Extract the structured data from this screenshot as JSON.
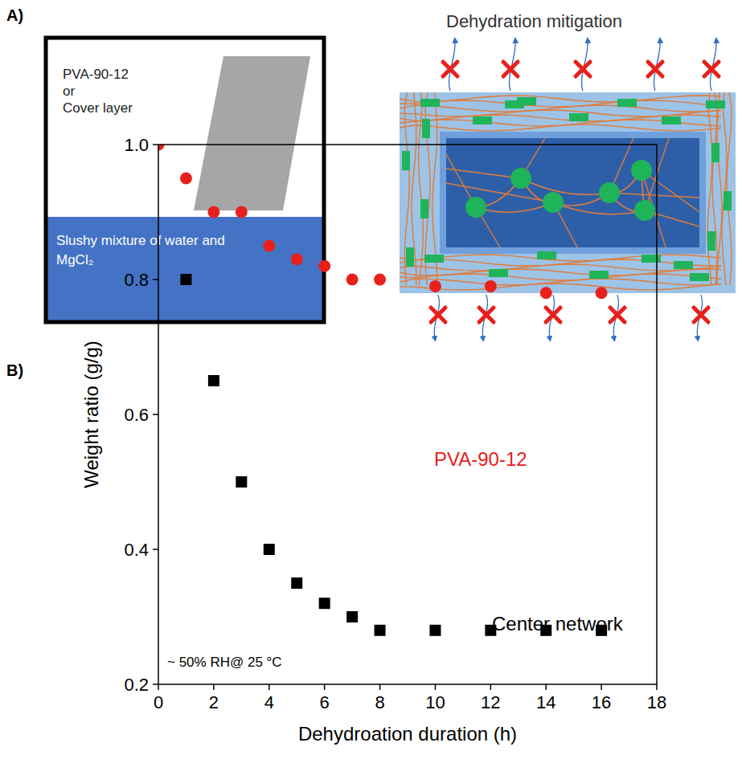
{
  "figure": {
    "panel_a": {
      "label": "A)",
      "box_text": [
        "PVA-90-12",
        "or",
        "Cover layer"
      ],
      "bath_text": [
        "Slushy mixture of water and",
        "MgCl₂"
      ],
      "diagram_title": "Dehydration mitigation"
    },
    "panel_b_label": "B)"
  },
  "chart_data": {
    "type": "scatter",
    "x_label": "Dehydroation duration (h)",
    "y_label": "Weight ratio (g/g)",
    "annotations": [
      "~ 50% RH@ 25 °C"
    ],
    "xlim": [
      0,
      18
    ],
    "xticks": [
      0,
      2,
      4,
      6,
      8,
      10,
      12,
      14,
      16,
      18
    ],
    "ylim": [
      0.2,
      1.0
    ],
    "yticks": [
      0.2,
      0.4,
      0.6,
      0.8,
      {
        "value": 1,
        "label": "1.0"
      }
    ],
    "grid": false,
    "series": [
      {
        "name": "PVA-90-12",
        "color": "#e8201c",
        "marker": "circle",
        "x": [
          0,
          1,
          2,
          3,
          4,
          5,
          6,
          7,
          8,
          10,
          12,
          14,
          16
        ],
        "values": [
          1.0,
          0.95,
          0.9,
          0.9,
          0.85,
          0.83,
          0.82,
          0.8,
          0.8,
          0.79,
          0.79,
          0.78,
          0.78
        ]
      },
      {
        "name": "Center network",
        "color": "#000000",
        "marker": "square",
        "x": [
          1,
          2,
          3,
          4,
          5,
          6,
          7,
          8,
          10,
          12,
          14,
          16
        ],
        "values": [
          0.8,
          0.65,
          0.5,
          0.4,
          0.35,
          0.32,
          0.3,
          0.28,
          0.28,
          0.28,
          0.28,
          0.28
        ]
      }
    ]
  }
}
